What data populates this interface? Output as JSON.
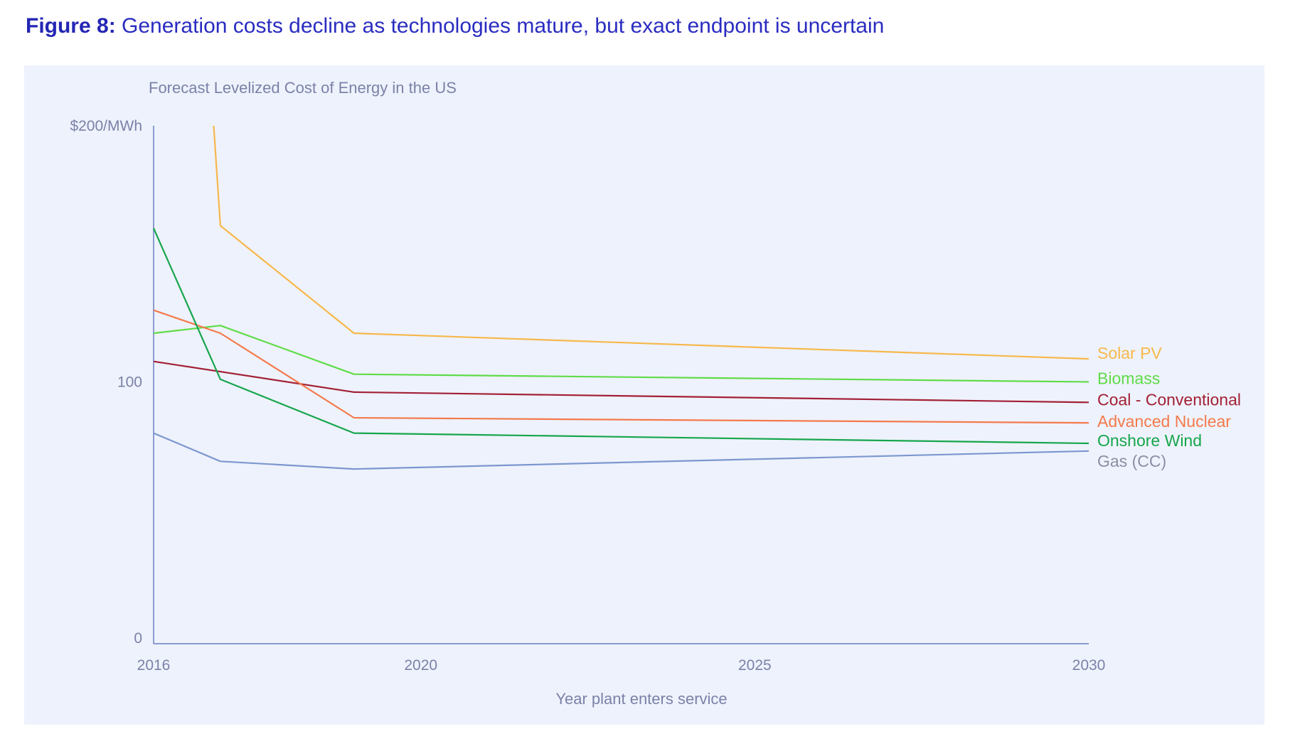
{
  "heading": {
    "figure_label": "Figure 8:",
    "text": "Generation costs decline as technologies mature, but exact endpoint is uncertain"
  },
  "chart_data": {
    "type": "line",
    "title": "Forecast Levelized Cost of Energy in the US",
    "xlabel": "Year plant enters service",
    "ylabel": "",
    "xlim": [
      2016,
      2030
    ],
    "ylim": [
      0,
      200
    ],
    "x_ticks": [
      "2016",
      "2020",
      "2025",
      "2030"
    ],
    "y_ticks": [
      {
        "value": 0,
        "label": "0"
      },
      {
        "value": 100,
        "label": "100"
      },
      {
        "value": 200,
        "label": "$200/MWh"
      }
    ],
    "grid": false,
    "legend": "labels at right end of lines",
    "series": [
      {
        "name": "Solar PV",
        "color": "#f7b84b",
        "points": [
          [
            2016.9,
            200
          ],
          [
            2017,
            161
          ],
          [
            2019,
            119
          ],
          [
            2030,
            109
          ]
        ]
      },
      {
        "name": "Biomass",
        "color": "#5fdc48",
        "points": [
          [
            2016,
            119
          ],
          [
            2017,
            122
          ],
          [
            2019,
            103
          ],
          [
            2030,
            100
          ]
        ]
      },
      {
        "name": "Coal - Conventional",
        "color": "#a32035",
        "points": [
          [
            2016,
            108
          ],
          [
            2017,
            104
          ],
          [
            2019,
            96
          ],
          [
            2030,
            92
          ]
        ]
      },
      {
        "name": "Advanced Nuclear",
        "color": "#f47a4c",
        "points": [
          [
            2016,
            128
          ],
          [
            2017,
            119
          ],
          [
            2019,
            86
          ],
          [
            2030,
            84
          ]
        ]
      },
      {
        "name": "Onshore Wind",
        "color": "#16a64c",
        "points": [
          [
            2016,
            160
          ],
          [
            2017,
            101
          ],
          [
            2019,
            80
          ],
          [
            2030,
            76
          ]
        ]
      },
      {
        "name": "Gas (CC)",
        "color": "#7c97d0",
        "points": [
          [
            2016,
            80
          ],
          [
            2017,
            69
          ],
          [
            2019,
            66
          ],
          [
            2030,
            73
          ]
        ]
      }
    ]
  },
  "colors": {
    "heading": "#2a2cc0",
    "panel_background": "#eef2fc",
    "axis": "#6a80c4",
    "axis_text": "#7b82a8",
    "gas_label_text": "#8a8fa4"
  }
}
